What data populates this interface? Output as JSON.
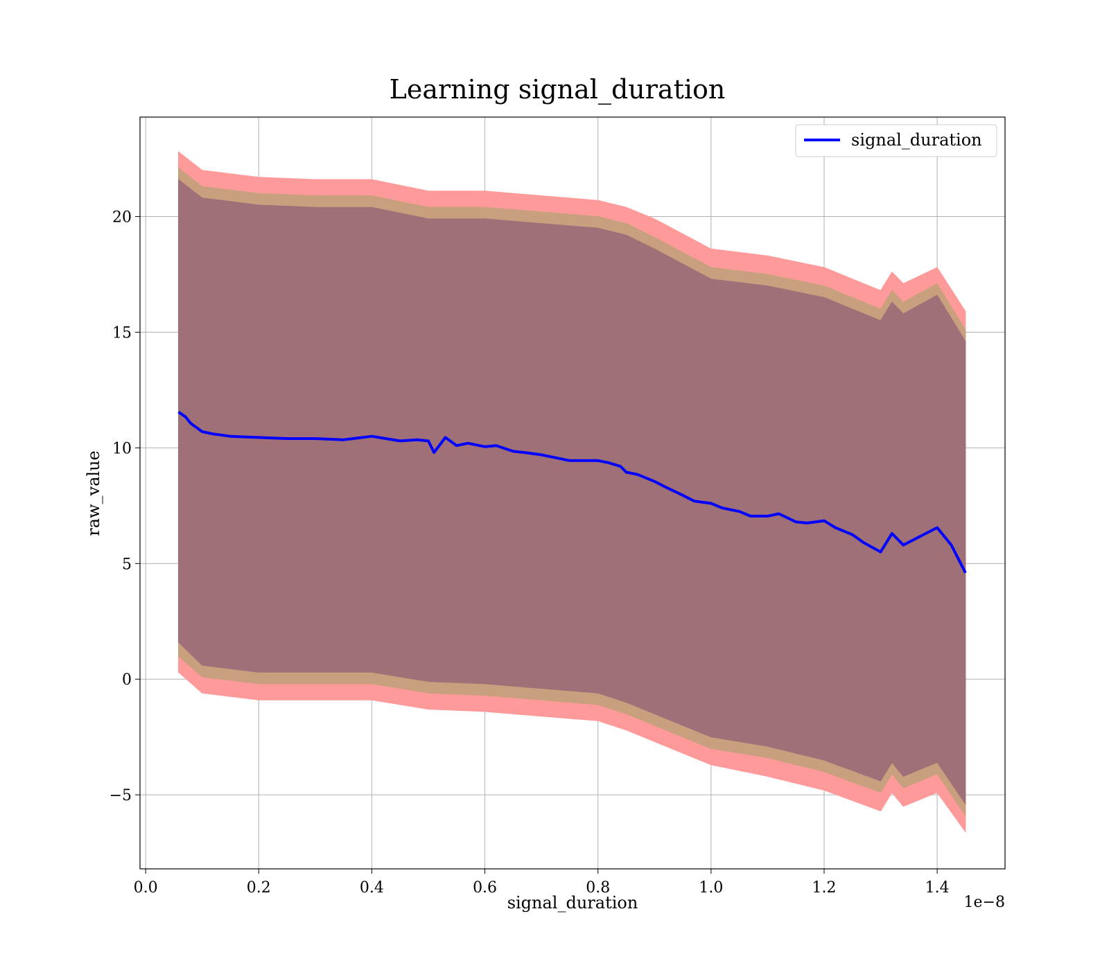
{
  "chart_data": {
    "type": "line",
    "title": "Learning signal_duration",
    "xlabel": "signal_duration",
    "ylabel": "raw_value",
    "x_offset_label": "1e−8",
    "xlim": [
      -0.01,
      1.52
    ],
    "ylim": [
      -8.2,
      24.3
    ],
    "x_ticks": [
      0.0,
      0.2,
      0.4,
      0.6,
      0.8,
      1.0,
      1.2,
      1.4
    ],
    "x_tick_labels": [
      "0.0",
      "0.2",
      "0.4",
      "0.6",
      "0.8",
      "1.0",
      "1.2",
      "1.4"
    ],
    "y_ticks": [
      -5,
      0,
      5,
      10,
      15,
      20
    ],
    "y_tick_labels": [
      "−5",
      "0",
      "5",
      "10",
      "15",
      "20"
    ],
    "grid": true,
    "legend_position": "top-right",
    "colors": {
      "line": "#0000ff",
      "band_outer": "#ff9a9a",
      "band_middle": "#c8a07e",
      "band_inner": "#a07078"
    },
    "series": [
      {
        "name": "signal_duration",
        "x": [
          0.058,
          0.07,
          0.08,
          0.1,
          0.12,
          0.15,
          0.2,
          0.25,
          0.3,
          0.35,
          0.4,
          0.45,
          0.48,
          0.5,
          0.51,
          0.53,
          0.55,
          0.57,
          0.6,
          0.62,
          0.65,
          0.67,
          0.7,
          0.72,
          0.75,
          0.78,
          0.8,
          0.82,
          0.84,
          0.85,
          0.87,
          0.9,
          0.92,
          0.95,
          0.97,
          1.0,
          1.02,
          1.05,
          1.07,
          1.1,
          1.12,
          1.15,
          1.17,
          1.2,
          1.22,
          1.25,
          1.27,
          1.3,
          1.32,
          1.34,
          1.36,
          1.38,
          1.4,
          1.425,
          1.45
        ],
        "values": [
          11.55,
          11.35,
          11.05,
          10.7,
          10.6,
          10.5,
          10.45,
          10.4,
          10.4,
          10.35,
          10.5,
          10.3,
          10.35,
          10.3,
          9.8,
          10.45,
          10.1,
          10.2,
          10.05,
          10.1,
          9.85,
          9.8,
          9.7,
          9.6,
          9.45,
          9.45,
          9.45,
          9.35,
          9.2,
          8.95,
          8.85,
          8.55,
          8.3,
          7.95,
          7.7,
          7.6,
          7.4,
          7.25,
          7.05,
          7.05,
          7.15,
          6.8,
          6.75,
          6.85,
          6.55,
          6.25,
          5.9,
          5.5,
          6.3,
          5.8,
          6.05,
          6.3,
          6.55,
          5.8,
          4.6
        ]
      }
    ],
    "bands": [
      {
        "label": "outer",
        "x": [
          0.058,
          0.1,
          0.2,
          0.3,
          0.4,
          0.5,
          0.6,
          0.7,
          0.8,
          0.85,
          0.9,
          1.0,
          1.1,
          1.2,
          1.3,
          1.32,
          1.34,
          1.4,
          1.45
        ],
        "upper": [
          22.8,
          22.0,
          21.7,
          21.6,
          21.6,
          21.1,
          21.1,
          20.9,
          20.7,
          20.4,
          19.9,
          18.6,
          18.3,
          17.8,
          16.8,
          17.6,
          17.1,
          17.8,
          15.9
        ],
        "lower": [
          0.3,
          -0.6,
          -0.9,
          -0.9,
          -0.9,
          -1.3,
          -1.4,
          -1.6,
          -1.8,
          -2.2,
          -2.7,
          -3.7,
          -4.2,
          -4.8,
          -5.7,
          -4.9,
          -5.5,
          -4.9,
          -6.6
        ]
      },
      {
        "label": "middle",
        "x": [
          0.058,
          0.1,
          0.2,
          0.3,
          0.4,
          0.5,
          0.6,
          0.7,
          0.8,
          0.85,
          0.9,
          1.0,
          1.1,
          1.2,
          1.3,
          1.32,
          1.34,
          1.4,
          1.45
        ],
        "upper": [
          22.1,
          21.3,
          21.0,
          20.9,
          20.9,
          20.4,
          20.4,
          20.2,
          20.0,
          19.7,
          19.1,
          17.8,
          17.5,
          17.0,
          16.0,
          16.8,
          16.3,
          17.1,
          15.1
        ],
        "lower": [
          1.0,
          0.1,
          -0.2,
          -0.2,
          -0.2,
          -0.6,
          -0.7,
          -0.9,
          -1.1,
          -1.5,
          -2.0,
          -3.0,
          -3.4,
          -4.0,
          -4.9,
          -4.1,
          -4.7,
          -4.1,
          -5.9
        ]
      },
      {
        "label": "inner",
        "x": [
          0.058,
          0.1,
          0.2,
          0.3,
          0.4,
          0.5,
          0.6,
          0.7,
          0.8,
          0.85,
          0.9,
          1.0,
          1.1,
          1.2,
          1.3,
          1.32,
          1.34,
          1.4,
          1.45
        ],
        "upper": [
          21.6,
          20.8,
          20.5,
          20.4,
          20.4,
          19.9,
          19.9,
          19.7,
          19.5,
          19.2,
          18.6,
          17.3,
          17.0,
          16.5,
          15.5,
          16.3,
          15.8,
          16.6,
          14.6
        ],
        "lower": [
          1.6,
          0.6,
          0.3,
          0.3,
          0.3,
          -0.1,
          -0.2,
          -0.4,
          -0.6,
          -1.0,
          -1.5,
          -2.5,
          -2.9,
          -3.5,
          -4.4,
          -3.6,
          -4.2,
          -3.6,
          -5.4
        ]
      }
    ]
  }
}
